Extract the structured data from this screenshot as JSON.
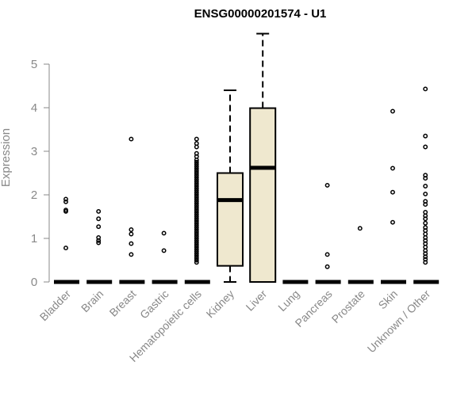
{
  "chart_data": {
    "type": "box",
    "title": "ENSG00000201574 - U1",
    "ylabel": "Expression",
    "xlabel": "",
    "ylim": [
      0,
      5.75
    ],
    "yticks": [
      0,
      1,
      2,
      3,
      4,
      5
    ],
    "yticks_labels": [
      "0",
      "1",
      "2",
      "3",
      "4",
      "5"
    ],
    "grid": false,
    "box_fill": "#efe8cf",
    "categories": [
      "Bladder",
      "Brain",
      "Breast",
      "Gastric",
      "Hematopoietic cells",
      "Kidney",
      "Liver",
      "Lung",
      "Pancreas",
      "Prostate",
      "Skin",
      "Unknown / Other"
    ],
    "boxes": [
      {
        "category": "Bladder",
        "min": 0,
        "q1": 0,
        "median": 0,
        "q3": 0,
        "max": 0,
        "outliers": [
          0.78,
          1.62,
          1.65,
          1.84,
          1.9
        ]
      },
      {
        "category": "Brain",
        "min": 0,
        "q1": 0,
        "median": 0,
        "q3": 0,
        "max": 0,
        "outliers": [
          0.9,
          0.95,
          1.02,
          1.27,
          1.45,
          1.62
        ]
      },
      {
        "category": "Breast",
        "min": 0,
        "q1": 0,
        "median": 0,
        "q3": 0,
        "max": 0,
        "outliers": [
          0.63,
          0.88,
          1.1,
          1.2,
          3.28
        ]
      },
      {
        "category": "Gastric",
        "min": 0,
        "q1": 0,
        "median": 0,
        "q3": 0,
        "max": 0,
        "outliers": [
          0.72,
          1.12
        ]
      },
      {
        "category": "Hematopoietic cells",
        "min": 0,
        "q1": 0,
        "median": 0,
        "q3": 0,
        "max": 0,
        "outliers": [
          0.45,
          0.5,
          0.55,
          0.6,
          0.65,
          0.7,
          0.75,
          0.8,
          0.85,
          0.9,
          0.95,
          1.0,
          1.05,
          1.1,
          1.15,
          1.2,
          1.25,
          1.3,
          1.35,
          1.4,
          1.45,
          1.5,
          1.55,
          1.6,
          1.65,
          1.7,
          1.75,
          1.8,
          1.85,
          1.9,
          1.95,
          2.0,
          2.05,
          2.1,
          2.15,
          2.2,
          2.25,
          2.3,
          2.35,
          2.4,
          2.45,
          2.5,
          2.55,
          2.6,
          2.65,
          2.7,
          2.75,
          2.8,
          2.88,
          2.95,
          3.1,
          3.18,
          3.28
        ]
      },
      {
        "category": "Kidney",
        "min": 0,
        "q1": 0.37,
        "median": 1.88,
        "q3": 2.5,
        "max": 4.4,
        "outliers": []
      },
      {
        "category": "Liver",
        "min": 0,
        "q1": 0,
        "median": 2.62,
        "q3": 3.99,
        "max": 5.7,
        "outliers": []
      },
      {
        "category": "Lung",
        "min": 0,
        "q1": 0,
        "median": 0,
        "q3": 0,
        "max": 0,
        "outliers": []
      },
      {
        "category": "Pancreas",
        "min": 0,
        "q1": 0,
        "median": 0,
        "q3": 0,
        "max": 0,
        "outliers": [
          0.35,
          0.63,
          2.22
        ]
      },
      {
        "category": "Prostate",
        "min": 0,
        "q1": 0,
        "median": 0,
        "q3": 0,
        "max": 0,
        "outliers": [
          1.23
        ]
      },
      {
        "category": "Skin",
        "min": 0,
        "q1": 0,
        "median": 0,
        "q3": 0,
        "max": 0,
        "outliers": [
          1.37,
          2.06,
          2.61,
          3.92
        ]
      },
      {
        "category": "Unknown / Other",
        "min": 0,
        "q1": 0,
        "median": 0,
        "q3": 0,
        "max": 0,
        "outliers": [
          0.45,
          0.52,
          0.58,
          0.65,
          0.72,
          0.8,
          0.88,
          0.95,
          1.02,
          1.1,
          1.18,
          1.25,
          1.35,
          1.45,
          1.52,
          1.6,
          1.78,
          1.85,
          2.02,
          2.2,
          2.38,
          2.45,
          3.1,
          3.35,
          4.43
        ]
      }
    ]
  }
}
